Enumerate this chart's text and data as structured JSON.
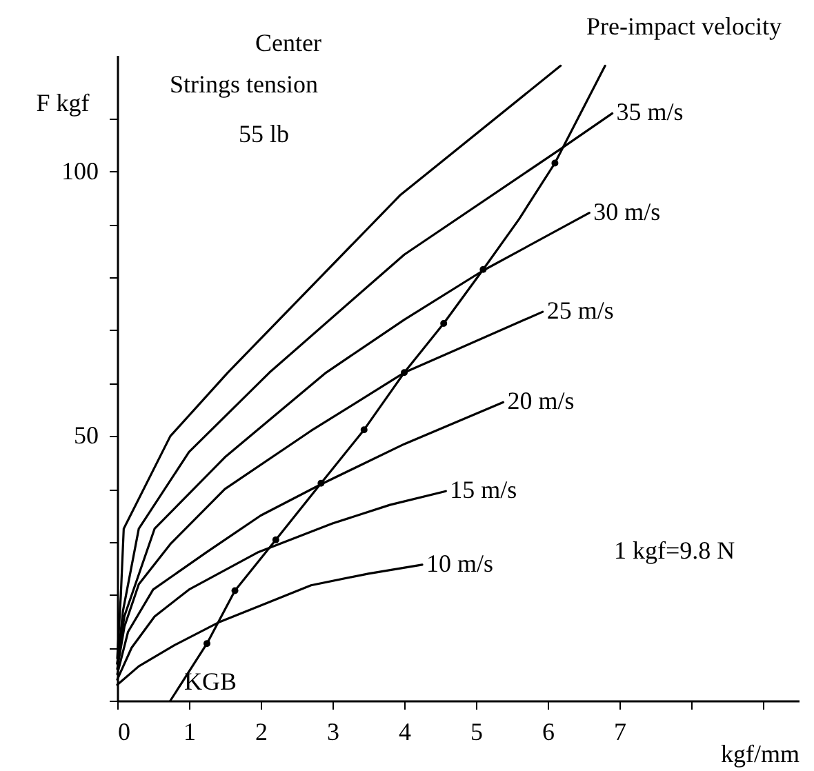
{
  "chart_data": {
    "type": "line",
    "xlabel": "kgf/mm",
    "ylabel": "F kgf",
    "annotations": [
      "Center",
      "Strings tension",
      "55  lb",
      "Pre-impact  velocity",
      "1 kgf=9.8  N"
    ],
    "xlim": [
      0,
      9.5
    ],
    "ylim": [
      0,
      122
    ],
    "xticks": [
      0,
      1,
      2,
      3,
      4,
      5,
      6,
      7,
      {
        "value": 8,
        "label": null
      },
      {
        "value": 9,
        "label": null
      }
    ],
    "yticks": [
      {
        "value": 0,
        "label": null
      },
      {
        "value": 10,
        "label": null
      },
      {
        "value": 20,
        "label": null
      },
      {
        "value": 30,
        "label": null
      },
      {
        "value": 40,
        "label": null
      },
      50,
      {
        "value": 60,
        "label": null
      },
      {
        "value": 70,
        "label": null
      },
      {
        "value": 80,
        "label": null
      },
      {
        "value": 90,
        "label": null
      },
      100,
      {
        "value": 110,
        "label": null
      }
    ],
    "grid": false,
    "marker": "none",
    "line_style": "solid",
    "series": [
      {
        "name": "10 m/s",
        "color": "#000000",
        "x": [
          0,
          0.3,
          0.8,
          1.43,
          2.0,
          2.7,
          3.5,
          4.25
        ],
        "values": [
          3,
          6.5,
          10.5,
          14.9,
          18,
          21.8,
          24,
          25.7
        ]
      },
      {
        "name": "15 m/s",
        "color": "#000000",
        "x": [
          0,
          0.2,
          0.52,
          1.0,
          1.97,
          3.0,
          3.8,
          4.58
        ],
        "values": [
          4,
          10,
          15.9,
          21,
          28.1,
          33.5,
          37,
          39.6
        ]
      },
      {
        "name": "20 m/s",
        "color": "#000000",
        "x": [
          0,
          0.15,
          0.5,
          1.25,
          2.0,
          2.84,
          4.0,
          5.38
        ],
        "values": [
          5,
          13,
          21,
          28.1,
          35,
          40.9,
          48.5,
          56.4
        ]
      },
      {
        "name": "25 m/s",
        "color": "#000000",
        "x": [
          0,
          0.1,
          0.3,
          0.74,
          1.5,
          2.7,
          4.0,
          5.93
        ],
        "values": [
          6,
          14,
          22,
          29.6,
          40,
          51,
          62,
          73.5
        ]
      },
      {
        "name": "30 m/s",
        "color": "#000000",
        "x": [
          0,
          0.1,
          0.52,
          1.5,
          2.91,
          4.0,
          5.1,
          6.58
        ],
        "values": [
          7,
          16,
          32.5,
          46,
          62,
          72,
          81.3,
          92.2
        ]
      },
      {
        "name": "35 m/s",
        "color": "#000000",
        "x": [
          0,
          0.08,
          0.3,
          1.0,
          2.12,
          4.0,
          6.15,
          6.9
        ],
        "values": [
          7,
          17,
          32.5,
          47,
          62,
          84.3,
          104,
          111
        ]
      },
      {
        "color": "#000000",
        "x": [
          0,
          0.05,
          0.09,
          0.74,
          1.54,
          3.94,
          6.18
        ],
        "values": [
          8,
          20,
          32.5,
          50,
          62,
          95.5,
          120
        ]
      },
      {
        "name": "KGB",
        "color": "#000000",
        "x": [
          0.74,
          1.25,
          1.64,
          2.21,
          2.84,
          3.44,
          4.0,
          4.55,
          5.1,
          5.6,
          6.1,
          6.8
        ],
        "values": [
          0,
          10.8,
          20.8,
          30.4,
          41.1,
          51.2,
          62,
          71.3,
          81.5,
          91,
          101.6,
          120
        ]
      },
      {
        "type": "scatter",
        "marker": "circle",
        "color": "#000000",
        "x": [
          1.25,
          1.64,
          2.21,
          2.84,
          3.44,
          4.0,
          4.55,
          5.1,
          6.1
        ],
        "values": [
          10.8,
          20.8,
          30.4,
          41.1,
          51.2,
          62,
          71.3,
          81.5,
          101.6
        ]
      }
    ]
  }
}
